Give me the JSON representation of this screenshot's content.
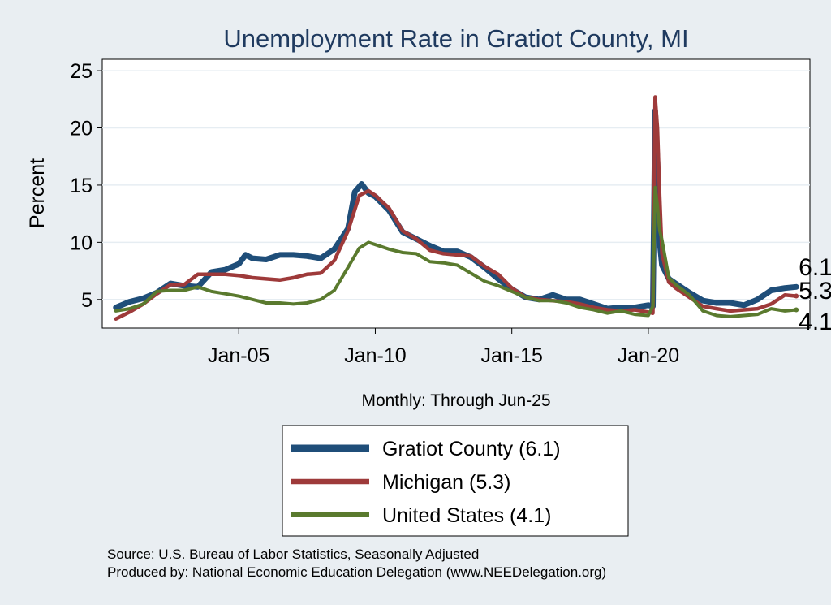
{
  "chart_data": {
    "type": "line",
    "title": "Unemployment Rate in Gratiot  County, MI",
    "ylabel": "Percent",
    "xlabel_note": "Monthly: Through Jun-25",
    "ylim": [
      2.5,
      26
    ],
    "xlim": [
      "2000-01",
      "2025-12"
    ],
    "y_ticks": [
      5,
      10,
      15,
      20,
      25
    ],
    "x_ticks": [
      {
        "label": "Jan-05",
        "date": "2005-01"
      },
      {
        "label": "Jan-10",
        "date": "2010-01"
      },
      {
        "label": "Jan-15",
        "date": "2015-01"
      },
      {
        "label": "Jan-20",
        "date": "2020-01"
      }
    ],
    "grid": "horizontal",
    "legend_placement": "bottom-center",
    "series": [
      {
        "name": "Gratiot  County (6.1)",
        "color": "#1f4e79",
        "end_label": "6.1",
        "points": [
          [
            "2000-07",
            4.3
          ],
          [
            "2001-01",
            4.8
          ],
          [
            "2001-07",
            5.1
          ],
          [
            "2002-01",
            5.6
          ],
          [
            "2002-07",
            6.4
          ],
          [
            "2003-01",
            6.2
          ],
          [
            "2003-07",
            6.1
          ],
          [
            "2004-01",
            7.4
          ],
          [
            "2004-07",
            7.6
          ],
          [
            "2005-01",
            8.1
          ],
          [
            "2005-04",
            8.9
          ],
          [
            "2005-07",
            8.6
          ],
          [
            "2006-01",
            8.5
          ],
          [
            "2006-07",
            8.9
          ],
          [
            "2007-01",
            8.9
          ],
          [
            "2007-07",
            8.8
          ],
          [
            "2008-01",
            8.6
          ],
          [
            "2008-07",
            9.4
          ],
          [
            "2009-01",
            11.2
          ],
          [
            "2009-04",
            14.4
          ],
          [
            "2009-07",
            15.1
          ],
          [
            "2009-10",
            14.3
          ],
          [
            "2010-01",
            14.0
          ],
          [
            "2010-07",
            12.8
          ],
          [
            "2011-01",
            10.9
          ],
          [
            "2011-07",
            10.3
          ],
          [
            "2012-01",
            9.7
          ],
          [
            "2012-07",
            9.2
          ],
          [
            "2013-01",
            9.2
          ],
          [
            "2013-07",
            8.7
          ],
          [
            "2014-01",
            7.8
          ],
          [
            "2014-07",
            6.8
          ],
          [
            "2015-01",
            5.9
          ],
          [
            "2015-07",
            5.2
          ],
          [
            "2016-01",
            5.0
          ],
          [
            "2016-07",
            5.4
          ],
          [
            "2017-01",
            5.0
          ],
          [
            "2017-07",
            5.0
          ],
          [
            "2018-01",
            4.6
          ],
          [
            "2018-07",
            4.2
          ],
          [
            "2019-01",
            4.3
          ],
          [
            "2019-07",
            4.3
          ],
          [
            "2020-01",
            4.5
          ],
          [
            "2020-03",
            4.4
          ],
          [
            "2020-04",
            21.5
          ],
          [
            "2020-05",
            17.0
          ],
          [
            "2020-06",
            10.0
          ],
          [
            "2020-07",
            8.0
          ],
          [
            "2020-10",
            6.8
          ],
          [
            "2021-01",
            6.4
          ],
          [
            "2021-07",
            5.6
          ],
          [
            "2022-01",
            4.9
          ],
          [
            "2022-07",
            4.7
          ],
          [
            "2023-01",
            4.7
          ],
          [
            "2023-07",
            4.5
          ],
          [
            "2024-01",
            5.0
          ],
          [
            "2024-07",
            5.8
          ],
          [
            "2025-01",
            6.0
          ],
          [
            "2025-06",
            6.1
          ]
        ]
      },
      {
        "name": "Michigan (5.3)",
        "color": "#9e3a3a",
        "end_label": "5.3",
        "points": [
          [
            "2000-07",
            3.3
          ],
          [
            "2001-01",
            3.9
          ],
          [
            "2001-07",
            4.6
          ],
          [
            "2002-01",
            5.5
          ],
          [
            "2002-07",
            6.3
          ],
          [
            "2003-01",
            6.3
          ],
          [
            "2003-07",
            7.2
          ],
          [
            "2004-01",
            7.2
          ],
          [
            "2004-07",
            7.2
          ],
          [
            "2005-01",
            7.1
          ],
          [
            "2005-07",
            6.9
          ],
          [
            "2006-01",
            6.8
          ],
          [
            "2006-07",
            6.7
          ],
          [
            "2007-01",
            6.9
          ],
          [
            "2007-07",
            7.2
          ],
          [
            "2008-01",
            7.3
          ],
          [
            "2008-07",
            8.4
          ],
          [
            "2009-01",
            11.0
          ],
          [
            "2009-06",
            14.1
          ],
          [
            "2009-10",
            14.5
          ],
          [
            "2010-01",
            14.1
          ],
          [
            "2010-07",
            13.0
          ],
          [
            "2011-01",
            11.0
          ],
          [
            "2011-07",
            10.3
          ],
          [
            "2012-01",
            9.3
          ],
          [
            "2012-07",
            9.0
          ],
          [
            "2013-01",
            8.9
          ],
          [
            "2013-07",
            8.8
          ],
          [
            "2014-01",
            7.9
          ],
          [
            "2014-07",
            7.2
          ],
          [
            "2015-01",
            6.0
          ],
          [
            "2015-07",
            5.2
          ],
          [
            "2016-01",
            5.0
          ],
          [
            "2016-07",
            4.9
          ],
          [
            "2017-01",
            4.8
          ],
          [
            "2017-07",
            4.6
          ],
          [
            "2018-01",
            4.3
          ],
          [
            "2018-07",
            4.1
          ],
          [
            "2019-01",
            4.0
          ],
          [
            "2019-07",
            4.1
          ],
          [
            "2020-01",
            3.9
          ],
          [
            "2020-03",
            3.8
          ],
          [
            "2020-04",
            22.7
          ],
          [
            "2020-05",
            20.0
          ],
          [
            "2020-06",
            14.0
          ],
          [
            "2020-07",
            9.0
          ],
          [
            "2020-10",
            6.5
          ],
          [
            "2021-01",
            6.0
          ],
          [
            "2021-07",
            5.2
          ],
          [
            "2022-01",
            4.4
          ],
          [
            "2022-07",
            4.2
          ],
          [
            "2023-01",
            4.0
          ],
          [
            "2023-07",
            4.1
          ],
          [
            "2024-01",
            4.2
          ],
          [
            "2024-07",
            4.6
          ],
          [
            "2025-01",
            5.4
          ],
          [
            "2025-06",
            5.3
          ]
        ]
      },
      {
        "name": "United States (4.1)",
        "color": "#5a7a2e",
        "end_label": "4.1",
        "points": [
          [
            "2000-07",
            4.0
          ],
          [
            "2001-01",
            4.2
          ],
          [
            "2001-07",
            4.6
          ],
          [
            "2002-01",
            5.7
          ],
          [
            "2002-07",
            5.8
          ],
          [
            "2003-01",
            5.8
          ],
          [
            "2003-07",
            6.1
          ],
          [
            "2004-01",
            5.7
          ],
          [
            "2004-07",
            5.5
          ],
          [
            "2005-01",
            5.3
          ],
          [
            "2005-07",
            5.0
          ],
          [
            "2006-01",
            4.7
          ],
          [
            "2006-07",
            4.7
          ],
          [
            "2007-01",
            4.6
          ],
          [
            "2007-07",
            4.7
          ],
          [
            "2008-01",
            5.0
          ],
          [
            "2008-07",
            5.8
          ],
          [
            "2009-01",
            7.8
          ],
          [
            "2009-06",
            9.5
          ],
          [
            "2009-10",
            10.0
          ],
          [
            "2010-01",
            9.8
          ],
          [
            "2010-07",
            9.4
          ],
          [
            "2011-01",
            9.1
          ],
          [
            "2011-07",
            9.0
          ],
          [
            "2012-01",
            8.3
          ],
          [
            "2012-07",
            8.2
          ],
          [
            "2013-01",
            8.0
          ],
          [
            "2013-07",
            7.3
          ],
          [
            "2014-01",
            6.6
          ],
          [
            "2014-07",
            6.2
          ],
          [
            "2015-01",
            5.7
          ],
          [
            "2015-07",
            5.2
          ],
          [
            "2016-01",
            4.9
          ],
          [
            "2016-07",
            4.9
          ],
          [
            "2017-01",
            4.7
          ],
          [
            "2017-07",
            4.3
          ],
          [
            "2018-01",
            4.1
          ],
          [
            "2018-07",
            3.8
          ],
          [
            "2019-01",
            4.0
          ],
          [
            "2019-07",
            3.7
          ],
          [
            "2020-01",
            3.6
          ],
          [
            "2020-03",
            4.4
          ],
          [
            "2020-04",
            14.8
          ],
          [
            "2020-05",
            13.2
          ],
          [
            "2020-06",
            11.0
          ],
          [
            "2020-07",
            10.2
          ],
          [
            "2020-10",
            6.9
          ],
          [
            "2021-01",
            6.3
          ],
          [
            "2021-07",
            5.4
          ],
          [
            "2022-01",
            4.0
          ],
          [
            "2022-07",
            3.6
          ],
          [
            "2023-01",
            3.5
          ],
          [
            "2023-07",
            3.6
          ],
          [
            "2024-01",
            3.7
          ],
          [
            "2024-07",
            4.2
          ],
          [
            "2025-01",
            4.0
          ],
          [
            "2025-06",
            4.1
          ]
        ]
      }
    ],
    "source": "Source: U.S. Bureau of Labor Statistics, Seasonally Adjusted",
    "producer": "Produced by: National Economic Education Delegation (www.NEEDelegation.org)"
  }
}
